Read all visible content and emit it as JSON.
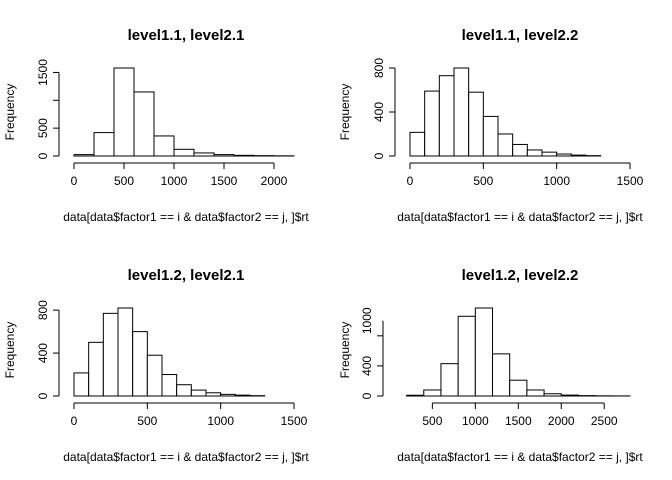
{
  "chart_data": [
    {
      "type": "bar",
      "title": "level1.1, level2.1",
      "xlabel": "data[data$factor1 == i & data$factor2 == j, ]$rt",
      "ylabel": "Frequency",
      "bin_edges": [
        0,
        200,
        400,
        600,
        800,
        1000,
        1200,
        1400,
        1600,
        1800,
        2000,
        2200
      ],
      "values": [
        25,
        420,
        1580,
        1150,
        360,
        120,
        55,
        25,
        12,
        6,
        3
      ],
      "xticks": [
        0,
        500,
        1000,
        1500,
        2000
      ],
      "xtick_labels": [
        "0",
        "500",
        "1000",
        "1500",
        "2000"
      ],
      "yticks": [
        0,
        500,
        1500
      ],
      "ytick_labels": [
        "0",
        "500",
        "1500"
      ]
    },
    {
      "type": "bar",
      "title": "level1.1, level2.2",
      "xlabel": "data[data$factor1 == i & data$factor2 == j, ]$rt",
      "ylabel": "Frequency",
      "bin_edges": [
        0,
        100,
        200,
        300,
        400,
        500,
        600,
        700,
        800,
        900,
        1000,
        1100,
        1200,
        1300
      ],
      "values": [
        215,
        590,
        730,
        800,
        580,
        360,
        200,
        105,
        55,
        35,
        18,
        8,
        3
      ],
      "xticks": [
        0,
        500,
        1000,
        1500
      ],
      "xtick_labels": [
        "0",
        "500",
        "1000",
        "1500"
      ],
      "yticks": [
        0,
        400,
        800
      ],
      "ytick_labels": [
        "0",
        "400",
        "800"
      ]
    },
    {
      "type": "bar",
      "title": "level1.2, level2.1",
      "xlabel": "data[data$factor1 == i & data$factor2 == j, ]$rt",
      "ylabel": "Frequency",
      "bin_edges": [
        0,
        100,
        200,
        300,
        400,
        500,
        600,
        700,
        800,
        900,
        1000,
        1100,
        1200,
        1300
      ],
      "values": [
        215,
        500,
        770,
        820,
        600,
        380,
        200,
        105,
        55,
        30,
        15,
        8,
        3
      ],
      "xticks": [
        0,
        500,
        1000,
        1500
      ],
      "xtick_labels": [
        "0",
        "500",
        "1000",
        "1500"
      ],
      "yticks": [
        0,
        400,
        800
      ],
      "ytick_labels": [
        "0",
        "400",
        "800"
      ]
    },
    {
      "type": "bar",
      "title": "level1.2, level2.2",
      "xlabel": "data[data$factor1 == i & data$factor2 == j, ]$rt",
      "ylabel": "Frequency",
      "bin_edges": [
        200,
        400,
        600,
        800,
        1000,
        1200,
        1400,
        1600,
        1800,
        2000,
        2200,
        2400,
        2600,
        2800
      ],
      "values": [
        10,
        80,
        430,
        1060,
        1170,
        560,
        210,
        80,
        30,
        12,
        5,
        2,
        1
      ],
      "xticks": [
        500,
        1000,
        1500,
        2000,
        2500
      ],
      "xtick_labels": [
        "500",
        "1000",
        "1500",
        "2000",
        "2500"
      ],
      "yticks": [
        0,
        400,
        1000
      ],
      "ytick_labels": [
        "0",
        "400",
        "1000"
      ]
    }
  ]
}
